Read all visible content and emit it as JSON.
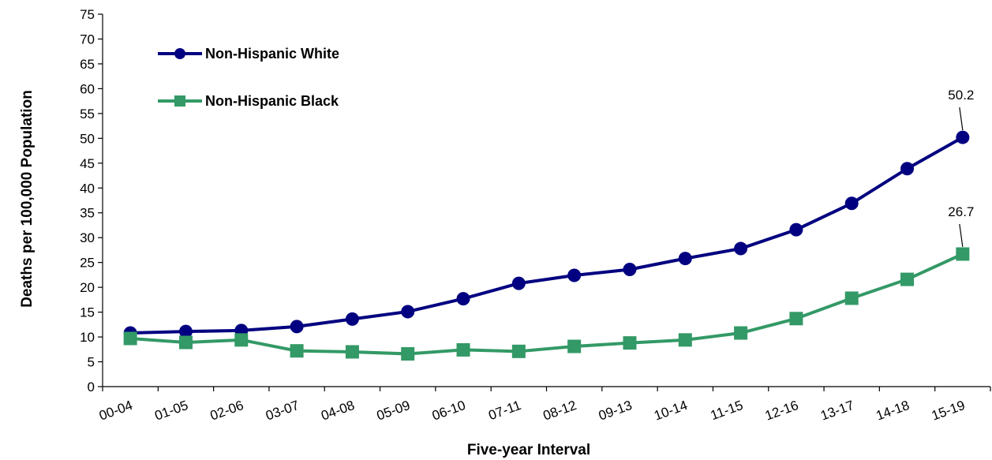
{
  "chart_data": {
    "type": "line",
    "title": "",
    "xlabel": "Five-year Interval",
    "ylabel": "Deaths per 100,000 Population",
    "ylim": [
      0,
      75
    ],
    "yticks": [
      0,
      5,
      10,
      15,
      20,
      25,
      30,
      35,
      40,
      45,
      50,
      55,
      60,
      65,
      70,
      75
    ],
    "categories": [
      "00-04",
      "01-05",
      "02-06",
      "03-07",
      "04-08",
      "05-09",
      "06-10",
      "07-11",
      "08-12",
      "09-13",
      "10-14",
      "11-15",
      "12-16",
      "13-17",
      "14-18",
      "15-19"
    ],
    "grid": false,
    "legend_position": "top-left",
    "series": [
      {
        "name": "Non-Hispanic White",
        "color": "#000080",
        "marker": "circle",
        "values": [
          10.8,
          11.1,
          11.3,
          12.1,
          13.6,
          15.1,
          17.7,
          20.8,
          22.4,
          23.6,
          25.8,
          27.8,
          31.6,
          36.9,
          43.9,
          50.2
        ]
      },
      {
        "name": "Non-Hispanic Black",
        "color": "#339966",
        "marker": "square",
        "values": [
          9.7,
          8.9,
          9.4,
          7.2,
          7.0,
          6.6,
          7.4,
          7.1,
          8.1,
          8.8,
          9.4,
          10.8,
          13.7,
          17.8,
          21.6,
          26.7
        ]
      }
    ],
    "annotations": [
      {
        "series": 0,
        "index": 15,
        "text": "50.2"
      },
      {
        "series": 1,
        "index": 15,
        "text": "26.7"
      }
    ]
  }
}
